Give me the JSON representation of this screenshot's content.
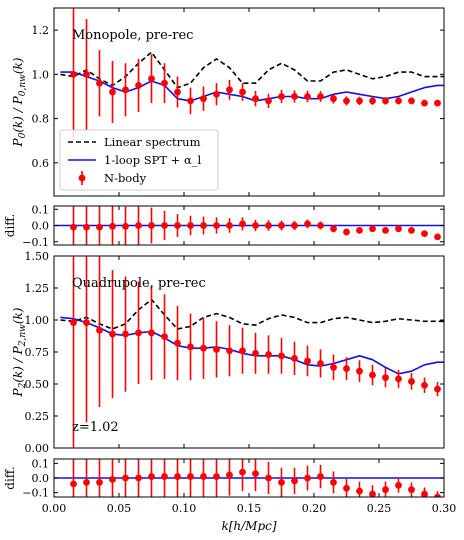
{
  "chart_data": [
    {
      "type": "line",
      "panel": "monopole",
      "annotation": "Monopole, pre-rec",
      "ylabel": "P_0(k) / P_0,nw(k)",
      "ylabel_parts": {
        "base": "P",
        "sub1": "0",
        "mid": "(k) / P",
        "sub2": "0,nw",
        "end": "(k)"
      },
      "xlim": [
        0.0,
        0.3
      ],
      "ylim": [
        0.45,
        1.3
      ],
      "yticks": [
        0.6,
        0.8,
        1.0,
        1.2
      ],
      "ytick_labels": [
        "0.6",
        "0.8",
        "1.0",
        "1.2"
      ],
      "legend": {
        "position": "lower-left",
        "entries": [
          "Linear spectrum",
          "1-loop SPT + α_l",
          "N-body"
        ]
      },
      "series": [
        {
          "name": "Linear spectrum",
          "style": "dashed",
          "color": "#000000",
          "x": [
            0.005,
            0.015,
            0.025,
            0.035,
            0.045,
            0.055,
            0.065,
            0.075,
            0.085,
            0.095,
            0.105,
            0.115,
            0.125,
            0.135,
            0.145,
            0.155,
            0.165,
            0.175,
            0.185,
            0.195,
            0.205,
            0.215,
            0.225,
            0.235,
            0.245,
            0.255,
            0.265,
            0.275,
            0.285,
            0.295,
            0.3
          ],
          "y": [
            1.0,
            0.99,
            1.02,
            0.98,
            0.95,
            0.99,
            1.05,
            1.1,
            1.02,
            0.94,
            0.96,
            1.03,
            1.07,
            1.03,
            0.96,
            0.96,
            1.02,
            1.05,
            1.02,
            0.97,
            0.97,
            1.01,
            1.02,
            1.0,
            0.98,
            0.99,
            1.01,
            1.01,
            0.99,
            0.99,
            0.99
          ]
        },
        {
          "name": "1-loop SPT + α_l",
          "style": "solid",
          "color": "#1010ee",
          "x": [
            0.005,
            0.015,
            0.025,
            0.035,
            0.045,
            0.055,
            0.065,
            0.075,
            0.085,
            0.095,
            0.105,
            0.115,
            0.125,
            0.135,
            0.145,
            0.155,
            0.165,
            0.175,
            0.185,
            0.195,
            0.205,
            0.215,
            0.225,
            0.235,
            0.245,
            0.255,
            0.265,
            0.275,
            0.285,
            0.295,
            0.3
          ],
          "y": [
            1.01,
            1.01,
            0.99,
            0.97,
            0.94,
            0.92,
            0.94,
            0.97,
            0.95,
            0.89,
            0.88,
            0.9,
            0.92,
            0.91,
            0.9,
            0.88,
            0.89,
            0.9,
            0.9,
            0.89,
            0.89,
            0.91,
            0.92,
            0.91,
            0.9,
            0.89,
            0.9,
            0.92,
            0.94,
            0.95,
            0.95
          ]
        },
        {
          "name": "N-body",
          "style": "errorbar",
          "color": "#ff0000",
          "x": [
            0.015,
            0.025,
            0.035,
            0.045,
            0.055,
            0.065,
            0.075,
            0.085,
            0.095,
            0.105,
            0.115,
            0.125,
            0.135,
            0.145,
            0.155,
            0.165,
            0.175,
            0.185,
            0.195,
            0.205,
            0.215,
            0.225,
            0.235,
            0.245,
            0.255,
            0.265,
            0.275,
            0.285,
            0.295
          ],
          "y": [
            1.0,
            1.0,
            0.96,
            0.92,
            0.93,
            0.95,
            0.98,
            0.96,
            0.92,
            0.88,
            0.89,
            0.91,
            0.93,
            0.92,
            0.89,
            0.88,
            0.9,
            0.9,
            0.9,
            0.9,
            0.89,
            0.88,
            0.88,
            0.88,
            0.88,
            0.88,
            0.88,
            0.87,
            0.87
          ],
          "err": [
            0.3,
            0.25,
            0.15,
            0.14,
            0.12,
            0.12,
            0.11,
            0.09,
            0.07,
            0.06,
            0.055,
            0.05,
            0.045,
            0.04,
            0.035,
            0.032,
            0.03,
            0.028,
            0.026,
            0.024,
            0.022,
            0.02,
            0.019,
            0.018,
            0.017,
            0.016,
            0.016,
            0.015,
            0.015
          ]
        }
      ]
    },
    {
      "type": "scatter",
      "panel": "monopole-diff",
      "ylabel": "diff.",
      "xlim": [
        0.0,
        0.3
      ],
      "ylim": [
        -0.12,
        0.12
      ],
      "yticks": [
        -0.1,
        0.0,
        0.1
      ],
      "ytick_labels": [
        "−0.1",
        "0.0",
        "0.1"
      ],
      "series": [
        {
          "name": "zero line",
          "style": "solid",
          "color": "#1010ee",
          "x": [
            0.0,
            0.3
          ],
          "y": [
            0,
            0
          ]
        },
        {
          "name": "N-body − model",
          "style": "errorbar",
          "color": "#ff0000",
          "x": [
            0.015,
            0.025,
            0.035,
            0.045,
            0.055,
            0.065,
            0.075,
            0.085,
            0.095,
            0.105,
            0.115,
            0.125,
            0.135,
            0.145,
            0.155,
            0.165,
            0.175,
            0.185,
            0.195,
            0.205,
            0.215,
            0.225,
            0.235,
            0.245,
            0.255,
            0.265,
            0.275,
            0.285,
            0.295
          ],
          "y": [
            -0.01,
            -0.01,
            -0.01,
            -0.005,
            -0.005,
            0.0,
            0.0,
            0.0,
            0.0,
            0.0,
            0.0,
            0.0,
            0.0,
            0.01,
            0.0,
            0.0,
            0.0,
            0.0,
            0.01,
            0.0,
            -0.02,
            -0.04,
            -0.03,
            -0.02,
            -0.03,
            -0.02,
            -0.03,
            -0.05,
            -0.07
          ],
          "err": [
            0.3,
            0.25,
            0.15,
            0.14,
            0.12,
            0.12,
            0.11,
            0.09,
            0.07,
            0.06,
            0.055,
            0.05,
            0.045,
            0.04,
            0.035,
            0.032,
            0.03,
            0.028,
            0.026,
            0.024,
            0.022,
            0.02,
            0.019,
            0.018,
            0.017,
            0.016,
            0.016,
            0.015,
            0.015
          ]
        }
      ]
    },
    {
      "type": "line",
      "panel": "quadrupole",
      "annotation": "Quadrupole, pre-rec",
      "redshift_label": "z=1.02",
      "ylabel": "P_2(k) / P_2,nw(k)",
      "ylabel_parts": {
        "base": "P",
        "sub1": "2",
        "mid": "(k) / P",
        "sub2": "2,nw",
        "end": "(k)"
      },
      "xlim": [
        0.0,
        0.3
      ],
      "ylim": [
        0.0,
        1.5
      ],
      "yticks": [
        0.0,
        0.25,
        0.5,
        0.75,
        1.0,
        1.25,
        1.5
      ],
      "ytick_labels": [
        "0.00",
        "0.25",
        "0.50",
        "0.75",
        "1.00",
        "1.25",
        "1.50"
      ],
      "series": [
        {
          "name": "Linear spectrum",
          "style": "dashed",
          "color": "#000000",
          "x": [
            0.005,
            0.015,
            0.025,
            0.035,
            0.045,
            0.055,
            0.065,
            0.075,
            0.085,
            0.095,
            0.105,
            0.115,
            0.125,
            0.135,
            0.145,
            0.155,
            0.165,
            0.175,
            0.185,
            0.195,
            0.205,
            0.215,
            0.225,
            0.235,
            0.245,
            0.255,
            0.265,
            0.275,
            0.285,
            0.295,
            0.3
          ],
          "y": [
            1.0,
            0.99,
            1.02,
            0.97,
            0.93,
            0.97,
            1.08,
            1.16,
            1.04,
            0.93,
            0.95,
            1.02,
            1.05,
            1.02,
            0.97,
            0.96,
            1.01,
            1.04,
            1.02,
            0.98,
            0.98,
            1.01,
            1.02,
            1.0,
            0.98,
            0.99,
            1.01,
            1.0,
            0.99,
            0.99,
            0.99
          ]
        },
        {
          "name": "1-loop SPT + α_l",
          "style": "solid",
          "color": "#1010ee",
          "x": [
            0.005,
            0.015,
            0.025,
            0.035,
            0.045,
            0.055,
            0.065,
            0.075,
            0.085,
            0.095,
            0.105,
            0.115,
            0.125,
            0.135,
            0.145,
            0.155,
            0.165,
            0.175,
            0.185,
            0.195,
            0.205,
            0.215,
            0.225,
            0.235,
            0.245,
            0.255,
            0.265,
            0.275,
            0.285,
            0.295,
            0.3
          ],
          "y": [
            1.02,
            1.01,
            0.98,
            0.94,
            0.89,
            0.88,
            0.9,
            0.91,
            0.86,
            0.8,
            0.78,
            0.78,
            0.79,
            0.77,
            0.74,
            0.72,
            0.72,
            0.72,
            0.69,
            0.65,
            0.64,
            0.66,
            0.69,
            0.72,
            0.69,
            0.63,
            0.58,
            0.6,
            0.65,
            0.67,
            0.67
          ]
        },
        {
          "name": "N-body",
          "style": "errorbar",
          "color": "#ff0000",
          "x": [
            0.015,
            0.025,
            0.035,
            0.045,
            0.055,
            0.065,
            0.075,
            0.085,
            0.095,
            0.105,
            0.115,
            0.125,
            0.135,
            0.145,
            0.155,
            0.165,
            0.175,
            0.185,
            0.195,
            0.205,
            0.215,
            0.225,
            0.235,
            0.245,
            0.255,
            0.265,
            0.275,
            0.285,
            0.295
          ],
          "y": [
            0.98,
            0.98,
            0.92,
            0.89,
            0.89,
            0.9,
            0.9,
            0.87,
            0.82,
            0.79,
            0.78,
            0.77,
            0.76,
            0.76,
            0.74,
            0.73,
            0.72,
            0.7,
            0.68,
            0.66,
            0.63,
            0.62,
            0.6,
            0.57,
            0.55,
            0.54,
            0.52,
            0.49,
            0.46
          ],
          "err": [
            1.0,
            0.78,
            0.6,
            0.5,
            0.45,
            0.4,
            0.37,
            0.33,
            0.29,
            0.26,
            0.24,
            0.22,
            0.2,
            0.18,
            0.16,
            0.15,
            0.14,
            0.13,
            0.12,
            0.11,
            0.1,
            0.09,
            0.085,
            0.08,
            0.075,
            0.07,
            0.065,
            0.06,
            0.055
          ]
        }
      ]
    },
    {
      "type": "scatter",
      "panel": "quadrupole-diff",
      "ylabel": "diff.",
      "xlabel": "k[h/Mpc]",
      "xlim": [
        0.0,
        0.3
      ],
      "xticks": [
        0.0,
        0.05,
        0.1,
        0.15,
        0.2,
        0.25,
        0.3
      ],
      "xtick_labels": [
        "0.00",
        "0.05",
        "0.10",
        "0.15",
        "0.20",
        "0.25",
        "0.30"
      ],
      "ylim": [
        -0.13,
        0.13
      ],
      "yticks": [
        -0.1,
        0.0,
        0.1
      ],
      "ytick_labels": [
        "−0.1",
        "0.0",
        "0.1"
      ],
      "series": [
        {
          "name": "zero line",
          "style": "solid",
          "color": "#1010ee",
          "x": [
            0.0,
            0.3
          ],
          "y": [
            0,
            0
          ]
        },
        {
          "name": "N-body − model",
          "style": "errorbar",
          "color": "#ff0000",
          "x": [
            0.015,
            0.025,
            0.035,
            0.045,
            0.055,
            0.065,
            0.075,
            0.085,
            0.095,
            0.105,
            0.115,
            0.125,
            0.135,
            0.145,
            0.155,
            0.165,
            0.175,
            0.185,
            0.195,
            0.205,
            0.215,
            0.225,
            0.235,
            0.245,
            0.255,
            0.265,
            0.275,
            0.285,
            0.295
          ],
          "y": [
            -0.04,
            -0.03,
            -0.03,
            -0.01,
            0.0,
            0.0,
            0.01,
            0.01,
            0.01,
            0.01,
            0.01,
            0.01,
            0.02,
            0.04,
            0.03,
            0.0,
            -0.03,
            -0.02,
            0.0,
            0.01,
            -0.03,
            -0.07,
            -0.09,
            -0.11,
            -0.08,
            -0.05,
            -0.08,
            -0.11,
            -0.13
          ],
          "err": [
            0.5,
            0.4,
            0.35,
            0.3,
            0.28,
            0.25,
            0.23,
            0.21,
            0.19,
            0.17,
            0.16,
            0.15,
            0.14,
            0.13,
            0.12,
            0.11,
            0.1,
            0.09,
            0.085,
            0.08,
            0.075,
            0.07,
            0.065,
            0.06,
            0.055,
            0.05,
            0.05,
            0.045,
            0.04
          ]
        }
      ]
    }
  ]
}
